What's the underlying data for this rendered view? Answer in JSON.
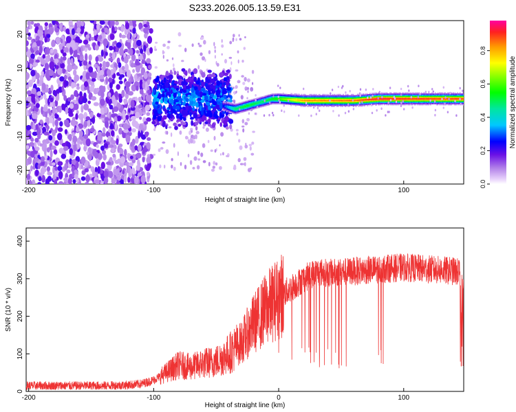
{
  "title": "S233.2026.005.13.59.E31",
  "chart_data": [
    {
      "type": "heatmap",
      "xlabel": "Height of straight line (km)",
      "ylabel": "Frequency (Hz)",
      "xlim": [
        -202,
        148
      ],
      "ylim": [
        -24,
        24
      ],
      "xticks": [
        -200,
        -100,
        0,
        100
      ],
      "yticks": [
        -20,
        -10,
        0,
        10,
        20
      ],
      "colorbar": {
        "label": "Normalized spectral amplitude",
        "range": [
          0,
          0.98
        ],
        "ticks": [
          0.0,
          0.2,
          0.4,
          0.6,
          0.8
        ],
        "tick_labels": [
          "0.0",
          "0.2",
          "0.4",
          "0.6",
          "0.8"
        ]
      },
      "description_points": {
        "ridge_x": [
          -100,
          -80,
          -60,
          -45,
          -35,
          -25,
          -15,
          -5,
          0,
          20,
          60,
          80,
          100,
          148
        ],
        "ridge_y": [
          1,
          1.5,
          1,
          -1,
          -2,
          -1,
          0,
          1,
          1,
          0.5,
          0.5,
          1,
          1,
          1
        ],
        "ridge_amplitude": [
          0.3,
          0.3,
          0.3,
          0.25,
          0.5,
          0.55,
          0.5,
          0.55,
          0.6,
          0.85,
          0.88,
          0.95,
          0.92,
          0.9
        ]
      }
    },
    {
      "type": "line",
      "xlabel": "Height of straight line (km)",
      "ylabel": "SNR (10 * v/v)",
      "xlim": [
        -202,
        148
      ],
      "ylim": [
        0,
        435
      ],
      "xticks": [
        -200,
        -100,
        0,
        100
      ],
      "yticks": [
        0,
        100,
        200,
        300,
        400
      ],
      "series": [
        {
          "name": "SNR",
          "color": "#ee3333",
          "x": [
            -202,
            -180,
            -160,
            -140,
            -120,
            -110,
            -100,
            -90,
            -80,
            -70,
            -60,
            -50,
            -40,
            -30,
            -20,
            -10,
            0,
            10,
            20,
            30,
            40,
            60,
            80,
            100,
            120,
            140,
            148
          ],
          "y": [
            15,
            15,
            15,
            15,
            17,
            20,
            30,
            50,
            70,
            65,
            75,
            80,
            100,
            130,
            180,
            220,
            250,
            275,
            300,
            318,
            315,
            320,
            325,
            330,
            325,
            320,
            315
          ]
        }
      ]
    }
  ]
}
